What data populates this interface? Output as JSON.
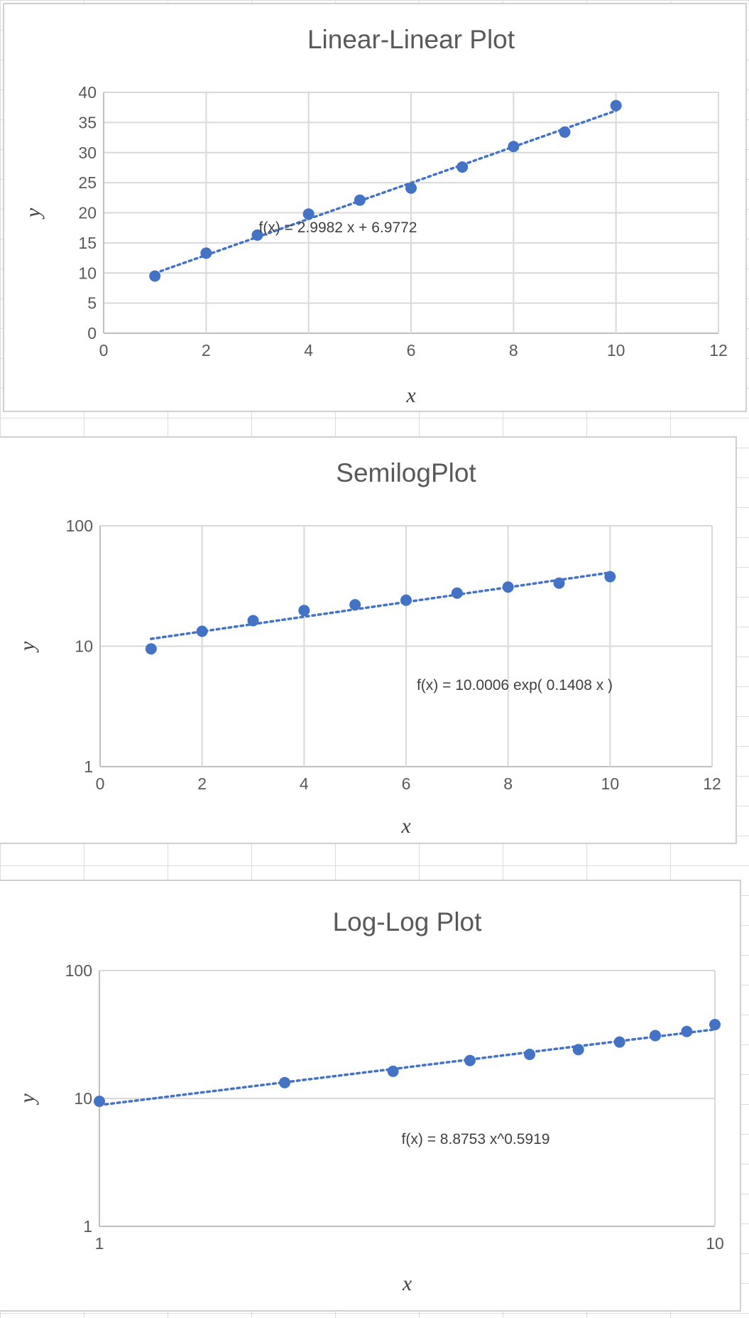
{
  "colors": {
    "marker": "#4472C4",
    "grid": "#d9d9d9",
    "text": "#595959"
  },
  "chart_data": [
    {
      "type": "scatter",
      "title": "Linear-Linear Plot",
      "xlabel": "x",
      "ylabel": "y",
      "xscale": "linear",
      "yscale": "linear",
      "xlim": [
        0,
        12
      ],
      "ylim": [
        0,
        40
      ],
      "xticks": [
        "0",
        "2",
        "4",
        "6",
        "8",
        "10",
        "12"
      ],
      "yticks": [
        "0",
        "5",
        "10",
        "15",
        "20",
        "25",
        "30",
        "35",
        "40"
      ],
      "x": [
        1,
        2,
        3,
        4,
        5,
        6,
        7,
        8,
        9,
        10
      ],
      "y": [
        9.5,
        13.3,
        16.3,
        19.8,
        22.1,
        24.1,
        27.6,
        31.0,
        33.4,
        37.8
      ],
      "trendline": {
        "kind": "linear",
        "a": 2.9982,
        "b": 6.9772,
        "label": "f(x) = 2.9982 x + 6.9772"
      },
      "grid": true
    },
    {
      "type": "scatter",
      "title": "SemilogPlot",
      "xlabel": "x",
      "ylabel": "y",
      "xscale": "linear",
      "yscale": "log",
      "xlim": [
        0,
        12
      ],
      "ylim": [
        1,
        100
      ],
      "xticks": [
        "0",
        "2",
        "4",
        "6",
        "8",
        "10",
        "12"
      ],
      "yticks": [
        "1",
        "10",
        "100"
      ],
      "x": [
        1,
        2,
        3,
        4,
        5,
        6,
        7,
        8,
        9,
        10
      ],
      "y": [
        9.5,
        13.3,
        16.3,
        19.8,
        22.1,
        24.1,
        27.6,
        31.0,
        33.4,
        37.8
      ],
      "trendline": {
        "kind": "exp",
        "a": 10.0006,
        "b": 0.1408,
        "label": "f(x) = 10.0006 exp( 0.1408 x )"
      },
      "grid": true
    },
    {
      "type": "scatter",
      "title": "Log-Log Plot",
      "xlabel": "x",
      "ylabel": "y",
      "xscale": "log",
      "yscale": "log",
      "xlim": [
        1,
        10
      ],
      "ylim": [
        1,
        100
      ],
      "xticks": [
        "1",
        "10"
      ],
      "yticks": [
        "1",
        "10",
        "100"
      ],
      "x": [
        1,
        2,
        3,
        4,
        5,
        6,
        7,
        8,
        9,
        10
      ],
      "y": [
        9.5,
        13.3,
        16.3,
        19.8,
        22.1,
        24.1,
        27.6,
        31.0,
        33.4,
        37.8
      ],
      "trendline": {
        "kind": "power",
        "a": 8.8753,
        "b": 0.5919,
        "label": "f(x) = 8.8753 x^0.5919"
      },
      "grid": true
    }
  ]
}
